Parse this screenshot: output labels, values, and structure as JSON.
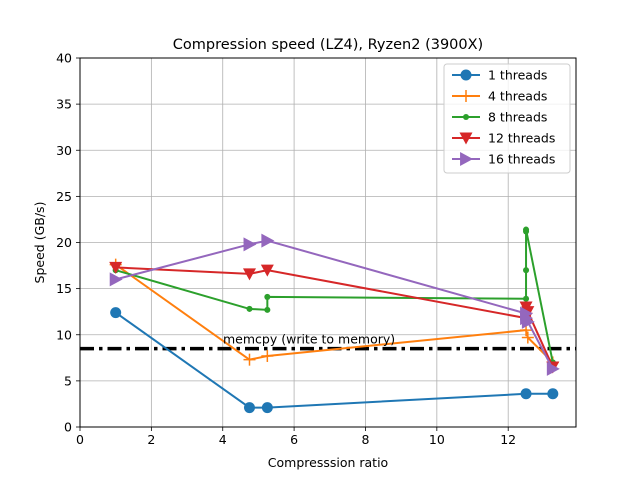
{
  "chart_data": {
    "type": "line",
    "title": "Compression speed (LZ4), Ryzen2 (3900X)",
    "xlabel": "Compresssion ratio",
    "ylabel": "Speed (GB/s)",
    "xlim": [
      0,
      13.9
    ],
    "ylim": [
      0,
      40
    ],
    "xticks": [
      0,
      2,
      4,
      6,
      8,
      10,
      12
    ],
    "yticks": [
      0,
      5,
      10,
      15,
      20,
      25,
      30,
      35,
      40
    ],
    "grid": true,
    "legend_position": "top-right",
    "reference_line": {
      "y": 8.5,
      "label": "memcpy (write to memory)",
      "color": "#000000"
    },
    "series": [
      {
        "name": "1 threads",
        "color": "#1f77b4",
        "marker": "circle",
        "points": [
          [
            1.0,
            12.4
          ],
          [
            4.75,
            2.1
          ],
          [
            5.25,
            2.1
          ],
          [
            12.5,
            3.6
          ],
          [
            13.25,
            3.6
          ]
        ]
      },
      {
        "name": "4 threads",
        "color": "#ff7f0e",
        "marker": "plus",
        "points": [
          [
            1.0,
            17.6
          ],
          [
            4.75,
            7.3
          ],
          [
            5.25,
            7.7
          ],
          [
            12.5,
            10.5
          ],
          [
            12.55,
            9.7
          ],
          [
            13.25,
            7.0
          ]
        ]
      },
      {
        "name": "8 threads",
        "color": "#2ca02c",
        "marker": "dot",
        "points": [
          [
            1.0,
            17.0
          ],
          [
            4.75,
            12.8
          ],
          [
            5.25,
            12.7
          ],
          [
            5.25,
            14.1
          ],
          [
            12.5,
            13.9
          ],
          [
            12.5,
            17.0
          ],
          [
            12.5,
            21.2
          ],
          [
            12.5,
            21.4
          ],
          [
            13.25,
            7.0
          ]
        ]
      },
      {
        "name": "12 threads",
        "color": "#d62728",
        "marker": "triangle-down",
        "points": [
          [
            1.0,
            17.3
          ],
          [
            4.75,
            16.6
          ],
          [
            5.25,
            17.0
          ],
          [
            12.5,
            11.8
          ],
          [
            12.5,
            13.0
          ],
          [
            12.55,
            12.5
          ],
          [
            13.25,
            6.5
          ]
        ]
      },
      {
        "name": "16 threads",
        "color": "#9467bd",
        "marker": "triangle-right",
        "points": [
          [
            1.0,
            16.0
          ],
          [
            4.75,
            19.8
          ],
          [
            5.25,
            20.2
          ],
          [
            12.5,
            12.3
          ],
          [
            12.5,
            11.8
          ],
          [
            12.55,
            11.4
          ],
          [
            13.25,
            6.3
          ]
        ]
      }
    ]
  }
}
